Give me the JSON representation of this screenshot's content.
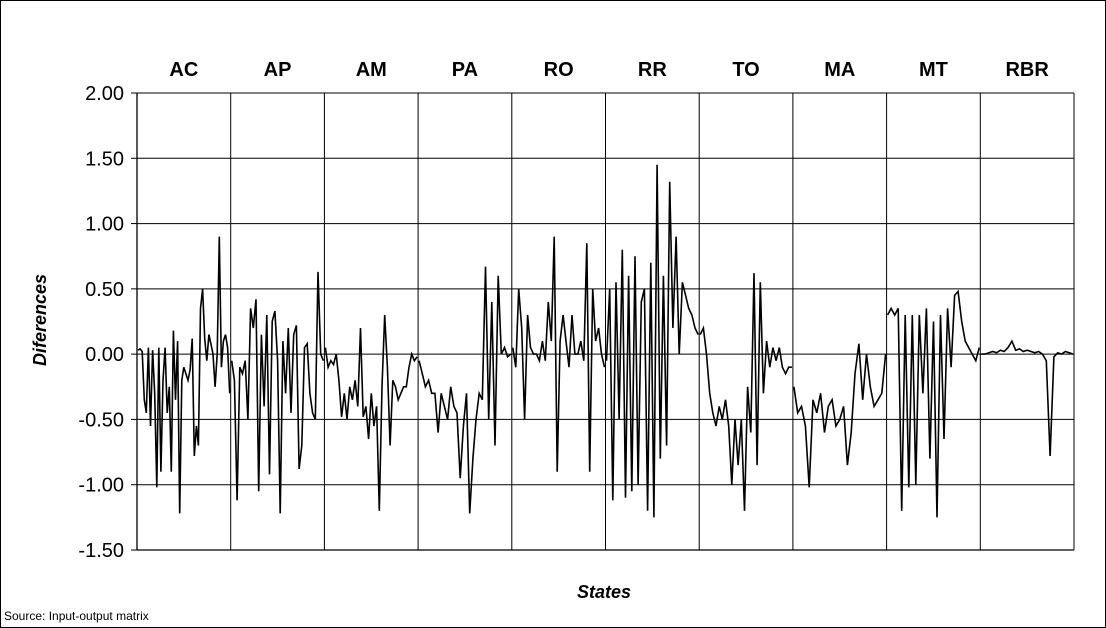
{
  "chart_data": {
    "type": "line",
    "title": "",
    "xlabel": "States",
    "ylabel": "Diferences",
    "ylim": [
      -1.5,
      2.0
    ],
    "yticks": [
      2.0,
      1.5,
      1.0,
      0.5,
      0.0,
      -0.5,
      -1.0,
      -1.5
    ],
    "ytick_labels": [
      "2.00",
      "1.50",
      "1.00",
      "0.50",
      "0.00",
      "-0.50",
      "-1.00",
      "-1.50"
    ],
    "grid": true,
    "legend": "none",
    "categories": [
      "AC",
      "AP",
      "AM",
      "PA",
      "RO",
      "RR",
      "TO",
      "MA",
      "MT",
      "RBR"
    ],
    "series": [
      {
        "color": "#000000",
        "segments": [
          {
            "state": "AC",
            "values": [
              0.03,
              0.04,
              0.02,
              -0.35,
              -0.45,
              0.05,
              -0.55,
              0.03,
              -0.3,
              -1.02,
              0.05,
              -0.9,
              -0.2,
              0.05,
              -0.45,
              -0.25,
              -0.9,
              0.18,
              -0.35,
              0.1,
              -1.22,
              -0.2,
              -0.1,
              -0.15,
              -0.2,
              -0.12,
              0.12,
              -0.78,
              -0.55,
              -0.7,
              0.35,
              0.5,
              0.12,
              -0.05,
              0.15,
              0.08,
              0.0,
              -0.25,
              0.0,
              0.9,
              -0.1,
              0.1,
              0.15,
              0.05,
              -0.3
            ]
          },
          {
            "state": "AP",
            "values": [
              -0.05,
              -0.2,
              -1.12,
              -0.1,
              -0.15,
              -0.05,
              -0.5,
              0.35,
              0.2,
              0.42,
              -1.05,
              0.15,
              -0.4,
              0.3,
              -0.92,
              0.25,
              0.33,
              -0.05,
              -1.22,
              0.1,
              -0.3,
              0.2,
              -0.45,
              0.15,
              0.22,
              -0.88,
              -0.7,
              0.05,
              0.08,
              -0.3,
              -0.45,
              -0.5,
              0.63,
              0.0,
              -0.05
            ]
          },
          {
            "state": "AM",
            "values": [
              0.05,
              -0.1,
              -0.05,
              -0.08,
              0.0,
              -0.2,
              -0.48,
              -0.3,
              -0.5,
              -0.25,
              -0.35,
              -0.2,
              -0.4,
              0.2,
              -0.48,
              -0.4,
              -0.65,
              -0.3,
              -0.55,
              -0.4,
              -1.2,
              -0.25,
              0.3,
              -0.1,
              -0.7,
              -0.2,
              -0.25,
              -0.35,
              -0.3,
              -0.25,
              -0.25,
              -0.1,
              0.0,
              -0.05,
              -0.02
            ]
          },
          {
            "state": "PA",
            "values": [
              -0.05,
              -0.15,
              -0.25,
              -0.2,
              -0.3,
              -0.3,
              -0.6,
              -0.3,
              -0.4,
              -0.5,
              -0.25,
              -0.4,
              -0.45,
              -0.95,
              -0.55,
              -0.3,
              -1.22,
              -0.8,
              -0.5,
              -0.3,
              -0.35,
              0.67,
              -0.5,
              0.4,
              -0.7,
              0.6,
              0.0,
              0.05,
              -0.02,
              0.0
            ]
          },
          {
            "state": "RO",
            "values": [
              0.05,
              -0.1,
              0.5,
              0.2,
              -0.5,
              0.3,
              0.05,
              0.0,
              0.0,
              -0.05,
              0.1,
              -0.05,
              0.4,
              0.1,
              0.9,
              -0.9,
              0.1,
              0.3,
              0.1,
              -0.1,
              0.3,
              0.0,
              0.0,
              0.1,
              -0.05,
              0.85,
              -0.9,
              0.5,
              0.1,
              0.2,
              0.0,
              -0.1
            ]
          },
          {
            "state": "RR",
            "values": [
              -0.05,
              0.5,
              -1.12,
              0.55,
              -0.5,
              0.8,
              -1.1,
              0.6,
              -1.05,
              0.75,
              -1.0,
              0.4,
              0.5,
              -1.2,
              0.7,
              -1.25,
              1.45,
              -0.8,
              0.6,
              -0.7,
              1.32,
              0.2,
              0.9,
              0.0,
              0.55,
              0.45,
              0.35,
              0.3,
              0.2,
              0.15
            ]
          },
          {
            "state": "TO",
            "values": [
              0.15,
              0.2,
              0.0,
              -0.3,
              -0.45,
              -0.55,
              -0.4,
              -0.5,
              -0.35,
              -0.55,
              -1.0,
              -0.5,
              -0.85,
              -0.5,
              -1.2,
              -0.25,
              -0.6,
              0.62,
              -0.85,
              0.55,
              -0.3,
              0.1,
              -0.1,
              0.05,
              -0.05,
              0.05,
              -0.1,
              -0.15,
              -0.1,
              -0.1
            ]
          },
          {
            "state": "MA",
            "values": [
              -0.25,
              -0.45,
              -0.4,
              -0.55,
              -1.02,
              -0.35,
              -0.45,
              -0.3,
              -0.6,
              -0.4,
              -0.35,
              -0.55,
              -0.5,
              -0.4,
              -0.85,
              -0.6,
              -0.15,
              0.08,
              -0.35,
              0.0,
              -0.25,
              -0.4,
              -0.35,
              -0.3,
              0.0
            ]
          },
          {
            "state": "MT",
            "values": [
              0.3,
              0.35,
              0.3,
              0.35,
              -1.2,
              0.3,
              -1.02,
              0.3,
              -1.0,
              0.3,
              -0.3,
              0.35,
              -0.8,
              0.25,
              -1.25,
              0.3,
              -0.65,
              0.35,
              -0.1,
              0.45,
              0.48,
              0.25,
              0.1,
              0.05,
              0.0,
              -0.05,
              0.05
            ]
          },
          {
            "state": "RBR",
            "values": [
              0.0,
              0.0,
              0.01,
              0.02,
              0.01,
              0.03,
              0.02,
              0.05,
              0.1,
              0.03,
              0.04,
              0.02,
              0.03,
              0.02,
              0.01,
              0.02,
              0.0,
              -0.05,
              -0.78,
              -0.02,
              0.01,
              0.0,
              0.02,
              0.01,
              0.0
            ]
          }
        ]
      }
    ]
  },
  "footer": {
    "source": "Source: Input-output matrix"
  }
}
